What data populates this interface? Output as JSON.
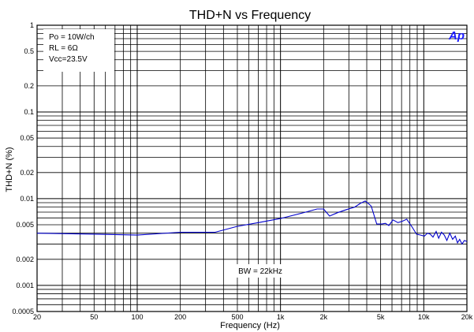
{
  "chart_data": {
    "type": "line",
    "title": "THD+N vs Frequency",
    "xlabel": "Frequency (Hz)",
    "ylabel": "THD+N (%)",
    "x_scale": "log",
    "y_scale": "log",
    "xlim": [
      20,
      20000
    ],
    "ylim": [
      0.0005,
      1
    ],
    "grid": true,
    "x_ticks": [
      {
        "value": 20,
        "label": "20"
      },
      {
        "value": 50,
        "label": "50"
      },
      {
        "value": 100,
        "label": "100"
      },
      {
        "value": 200,
        "label": "200"
      },
      {
        "value": 500,
        "label": "500"
      },
      {
        "value": 1000,
        "label": "1k"
      },
      {
        "value": 2000,
        "label": "2k"
      },
      {
        "value": 5000,
        "label": "5k"
      },
      {
        "value": 10000,
        "label": "10k"
      },
      {
        "value": 20000,
        "label": "20k"
      }
    ],
    "y_ticks": [
      {
        "value": 1,
        "label": "1"
      },
      {
        "value": 0.5,
        "label": "0.5"
      },
      {
        "value": 0.2,
        "label": "0.2"
      },
      {
        "value": 0.1,
        "label": "0.1"
      },
      {
        "value": 0.05,
        "label": "0.05"
      },
      {
        "value": 0.02,
        "label": "0.02"
      },
      {
        "value": 0.01,
        "label": "0.01"
      },
      {
        "value": 0.005,
        "label": "0.005"
      },
      {
        "value": 0.002,
        "label": "0.002"
      },
      {
        "value": 0.001,
        "label": "0.001"
      },
      {
        "value": 0.0005,
        "label": "0.0005"
      }
    ],
    "annotations": {
      "conditions": [
        "Po = 10W/ch",
        "RL = 6Ω",
        "Vcc=23.5V"
      ],
      "bandwidth": "BW = 22kHz",
      "logo": "Ap"
    },
    "series_color": "#0000cc",
    "series": [
      {
        "x": [
          20,
          50,
          100,
          200,
          350,
          500,
          700,
          1000,
          1500,
          1800,
          2000,
          2200,
          2500,
          2900,
          3300,
          3600,
          3900,
          4100,
          4300,
          4700,
          5100,
          5400,
          5700,
          6100,
          6600,
          7100,
          7600,
          8300,
          8900,
          9500,
          10100,
          10600,
          11100,
          11600,
          12200,
          12700,
          13300,
          13900,
          14500,
          15200,
          15900,
          16600,
          17200,
          17800,
          18500,
          19200,
          20000
        ],
        "y": [
          0.004,
          0.0039,
          0.0038,
          0.0041,
          0.0041,
          0.0048,
          0.0053,
          0.0059,
          0.007,
          0.0076,
          0.0076,
          0.0063,
          0.0069,
          0.0075,
          0.008,
          0.0088,
          0.0094,
          0.0088,
          0.0082,
          0.0051,
          0.0051,
          0.0052,
          0.0049,
          0.0057,
          0.0053,
          0.0055,
          0.0058,
          0.0047,
          0.0039,
          0.0038,
          0.0037,
          0.004,
          0.0039,
          0.0036,
          0.0042,
          0.0035,
          0.0041,
          0.0038,
          0.0033,
          0.004,
          0.0034,
          0.0037,
          0.0031,
          0.0034,
          0.003,
          0.0033,
          0.0032
        ]
      }
    ]
  }
}
